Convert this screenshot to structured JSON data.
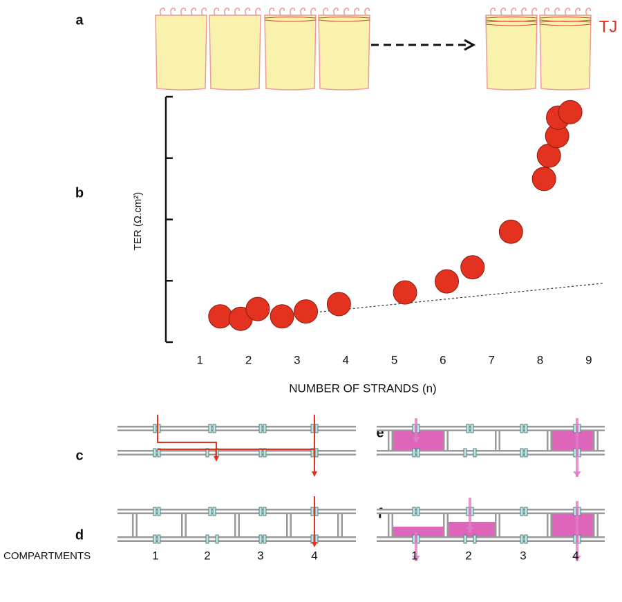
{
  "panels": {
    "a": "a",
    "b": "b",
    "c": "c",
    "d": "d",
    "e": "e",
    "f": "f"
  },
  "tj_label": "TJ",
  "chart_data": {
    "type": "scatter",
    "xlabel": "NUMBER OF STRANDS (n)",
    "ylabel": "TER (Ω.cm²)",
    "x": [
      1.42,
      1.84,
      2.19,
      2.69,
      3.18,
      3.86,
      5.22,
      6.08,
      6.61,
      7.4,
      8.08,
      8.18,
      8.35,
      8.37,
      8.62
    ],
    "values": [
      0.42,
      0.38,
      0.54,
      0.42,
      0.5,
      0.62,
      0.81,
      0.99,
      1.22,
      1.8,
      2.66,
      3.04,
      3.36,
      3.66,
      3.75
    ],
    "color": "#e3321f",
    "xlim": [
      0.3,
      9.4
    ],
    "xticks": [
      1,
      2,
      3,
      4,
      5,
      6,
      7,
      8,
      9
    ],
    "ylim": [
      0,
      4
    ],
    "yticks": [
      0,
      1,
      2,
      3,
      4
    ],
    "trendline": {
      "x": [
        3.3,
        9.3
      ],
      "y": [
        0.48,
        0.96
      ]
    }
  },
  "compartments": {
    "label": "COMPARTMENTS",
    "left": [
      "1",
      "2",
      "3",
      "4"
    ],
    "right": [
      "1",
      "2",
      "3",
      "4"
    ]
  }
}
